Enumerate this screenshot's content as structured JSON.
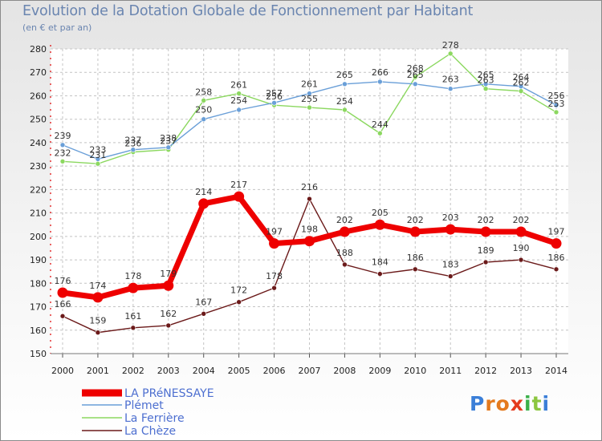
{
  "page": {
    "title": "Evolution de la Dotation Globale de Fonctionnement par Habitant",
    "subtitle": "(en € et par an)",
    "logo_text": "Proxiti"
  },
  "chart_data": {
    "type": "line",
    "title": "Evolution de la Dotation Globale de Fonctionnement par Habitant",
    "subtitle": "(en € et par an)",
    "xlabel": "",
    "ylabel": "",
    "ylim": [
      150,
      280
    ],
    "yticks": [
      150,
      160,
      170,
      180,
      190,
      200,
      210,
      220,
      230,
      240,
      250,
      260,
      270,
      280
    ],
    "grid": true,
    "legend_position": "bottom-left",
    "categories": [
      "2000",
      "2001",
      "2002",
      "2003",
      "2004",
      "2005",
      "2006",
      "2007",
      "2008",
      "2009",
      "2010",
      "2011",
      "2012",
      "2013",
      "2014"
    ],
    "series": [
      {
        "name": "La Chèze",
        "color": "#6b1a1a",
        "values": [
          166,
          159,
          161,
          162,
          167,
          172,
          178,
          216,
          188,
          184,
          186,
          183,
          189,
          190,
          186
        ]
      },
      {
        "name": "La Ferrière",
        "color": "#8cd860",
        "values": [
          232,
          231,
          236,
          237,
          258,
          261,
          256,
          255,
          254,
          244,
          268,
          278,
          263,
          262,
          253
        ]
      },
      {
        "name": "Plémet",
        "color": "#6a9fd8",
        "values": [
          239,
          233,
          237,
          238,
          250,
          254,
          257,
          261,
          265,
          266,
          265,
          263,
          265,
          264,
          256
        ]
      },
      {
        "name": "LA PRéNESSAYE",
        "color": "#ee0000",
        "values": [
          176,
          174,
          178,
          179,
          214,
          217,
          197,
          198,
          202,
          205,
          202,
          203,
          202,
          202,
          197
        ]
      }
    ],
    "legend_entries": [
      "LA PRéNESSAYE",
      "Plémet",
      "La Ferrière",
      "La Chèze"
    ]
  }
}
